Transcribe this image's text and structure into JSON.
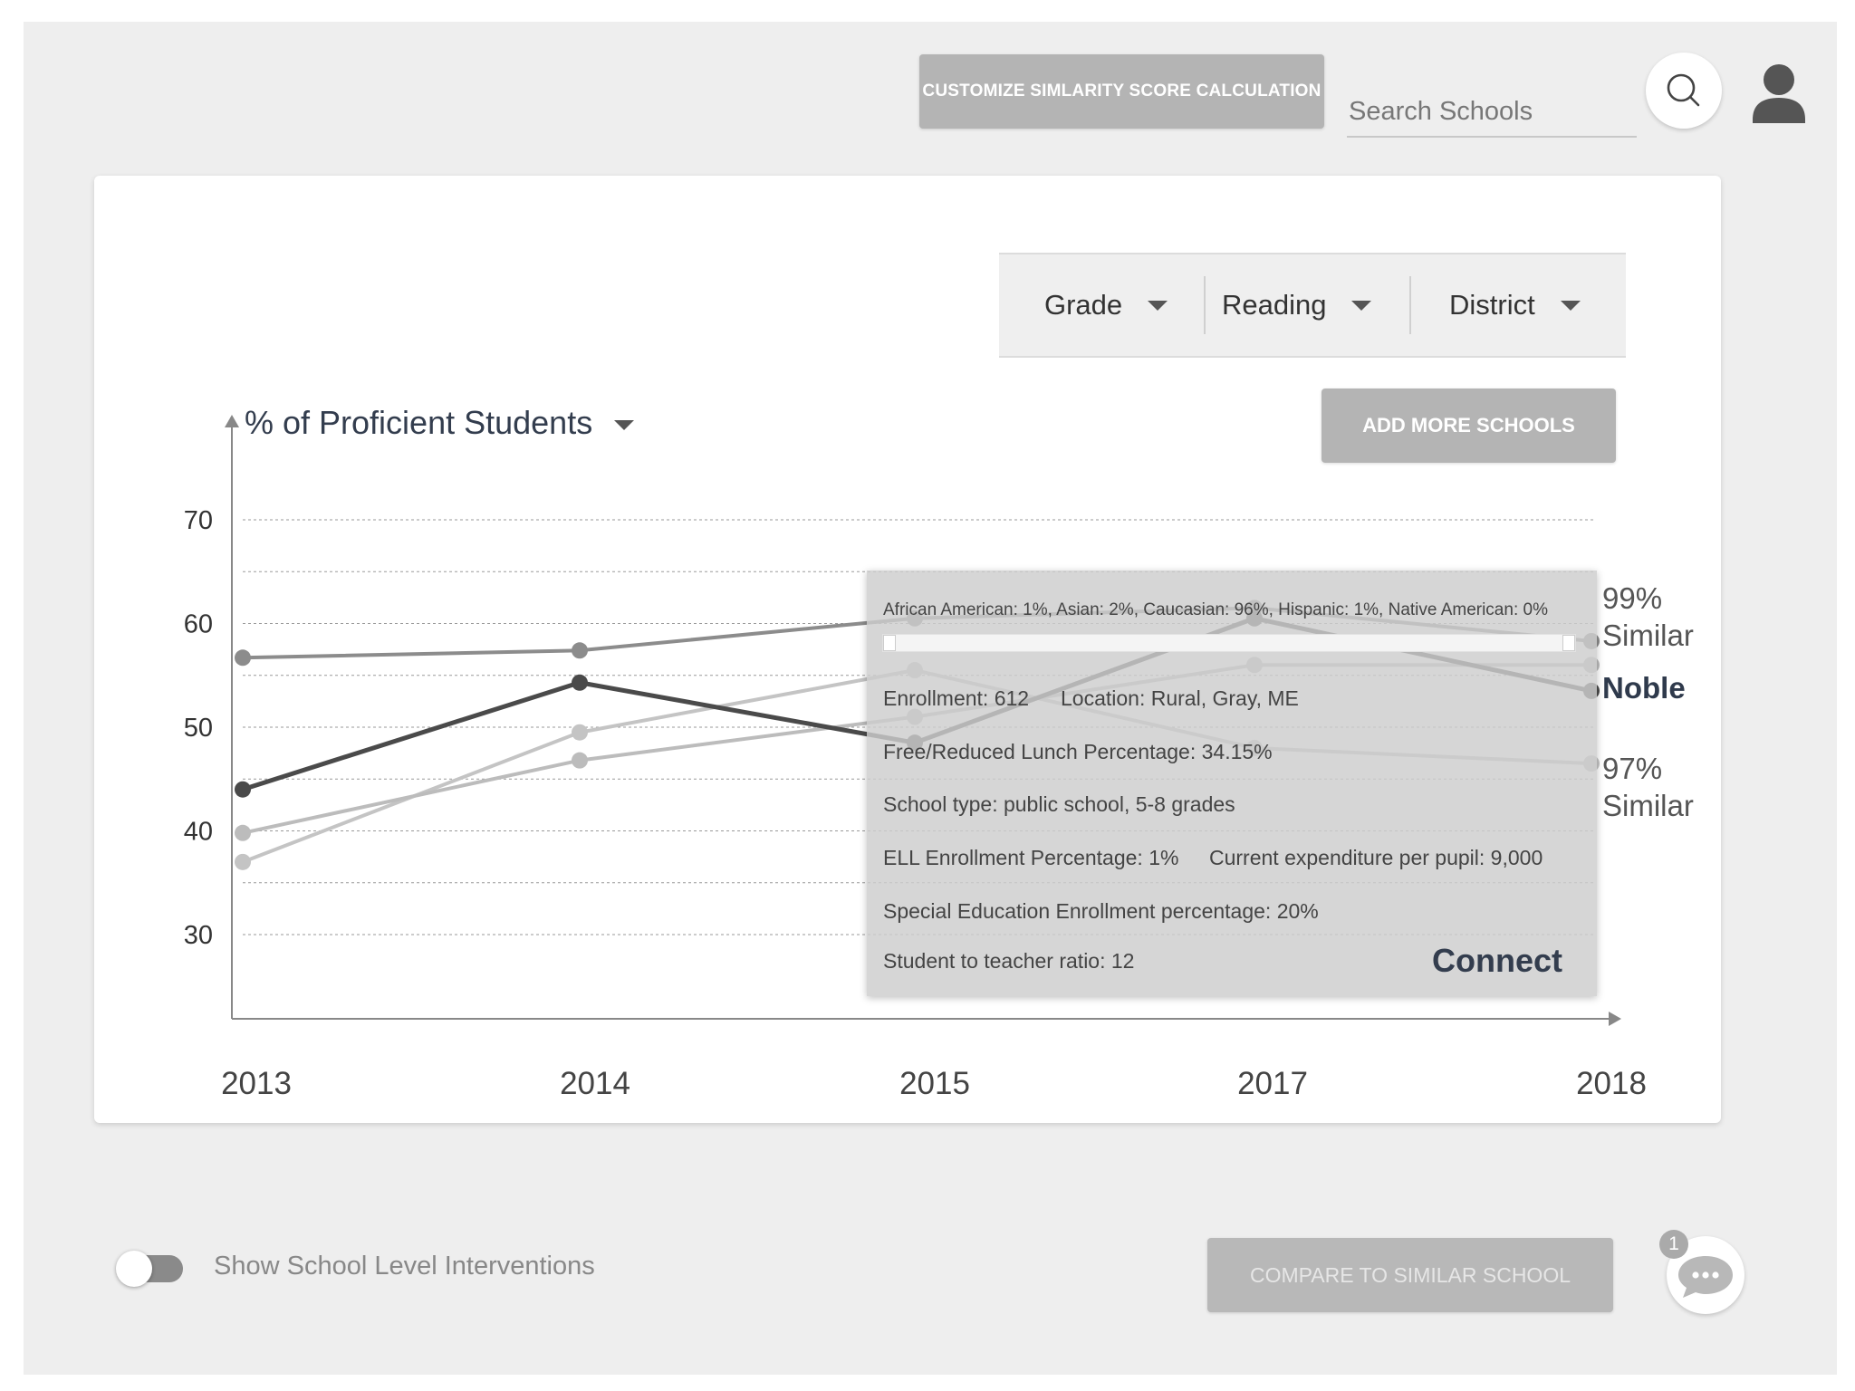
{
  "header": {
    "customize_label": "CUSTOMIZE SIMLARITY SCORE CALCULATION",
    "search_placeholder": "Search Schools"
  },
  "filters": [
    {
      "label": "Grade"
    },
    {
      "label": "Reading"
    },
    {
      "label": "District"
    }
  ],
  "add_schools_label": "ADD MORE SCHOOLS",
  "chart_data": {
    "type": "line",
    "ylabel": "% of Proficient Students",
    "x": [
      "2013",
      "2014",
      "2015",
      "2017",
      "2018"
    ],
    "y_ticks": [
      "30",
      "40",
      "50",
      "60",
      "70"
    ],
    "ylim": [
      22,
      75
    ],
    "grid": true,
    "series": [
      {
        "name": "Noble",
        "color": "#4a4a4a",
        "values": [
          44,
          54.3,
          48.5,
          60.5,
          53.5
        ]
      },
      {
        "color": "#8c8c8c",
        "values": [
          56.7,
          57.4,
          60.5,
          61.5,
          58.3
        ]
      },
      {
        "color": "#bcbcbc",
        "values": [
          39.8,
          46.8,
          51,
          56,
          56
        ]
      },
      {
        "color": "#c4c4c4",
        "values": [
          37,
          49.5,
          55.5,
          48,
          46.5
        ]
      }
    ],
    "end_labels": [
      {
        "line1": "99%",
        "line2": "Similar"
      },
      {
        "line1": "Noble",
        "line2": ""
      },
      {
        "line1": "97%",
        "line2": "Similar"
      }
    ]
  },
  "tooltip": {
    "demographics": "African American: 1%, Asian: 2%, Caucasian: 96%, Hispanic: 1%, Native American: 0%",
    "enrollment": "Enrollment: 612",
    "location": "Location: Rural, Gray, ME",
    "lunch": "Free/Reduced Lunch Percentage: 34.15%",
    "school_type": "School type: public school, 5-8 grades",
    "ell": "ELL Enrollment Percentage: 1%",
    "expenditure": "Current expenditure per pupil: 9,000",
    "special_ed": "Special Education Enrollment percentage: 20%",
    "ratio": "Student to teacher ratio: 12",
    "connect_label": "Connect"
  },
  "footer": {
    "toggle_label": "Show School Level Interventions",
    "toggle_on": false,
    "compare_label": "COMPARE TO SIMILAR SCHOOL",
    "chat_badge": "1"
  },
  "icons": {
    "search": "search-icon",
    "user": "user-icon",
    "chat": "chat-icon"
  }
}
